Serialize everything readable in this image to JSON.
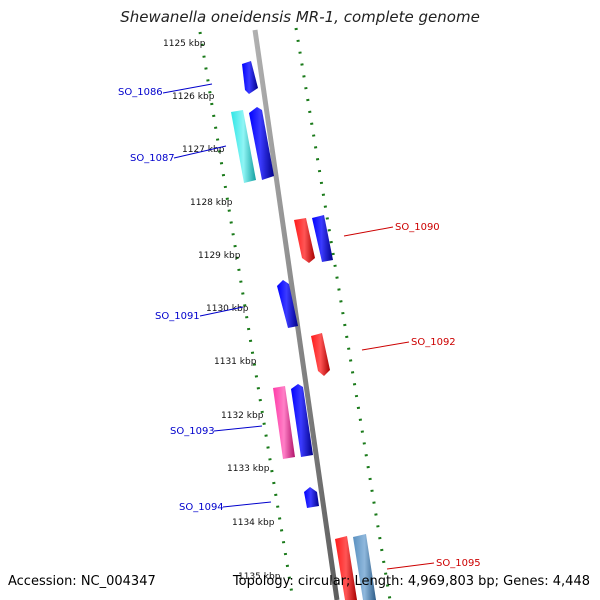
{
  "title": "Shewanella oneidensis MR-1, complete genome",
  "accession": "Accession: NC_004347",
  "topology": "Topology: circular; Length: 4,969,803 bp; Genes: 4,448",
  "ticks": [
    "1125 kbp",
    "1126 kbp",
    "1127 kbp",
    "1128 kbp",
    "1129 kbp",
    "1130 kbp",
    "1131 kbp",
    "1132 kbp",
    "1133 kbp",
    "1134 kbp",
    "1135 kbp"
  ],
  "genes_left": [
    {
      "id": "SO_1086",
      "color": "#0000cc"
    },
    {
      "id": "SO_1087",
      "color": "#0000cc"
    },
    {
      "id": "SO_1091",
      "color": "#0000cc"
    },
    {
      "id": "SO_1093",
      "color": "#0000cc"
    },
    {
      "id": "SO_1094",
      "color": "#0000cc"
    }
  ],
  "genes_right": [
    {
      "id": "SO_1090",
      "color": "#cc0000"
    },
    {
      "id": "SO_1092",
      "color": "#cc0000"
    },
    {
      "id": "SO_1095",
      "color": "#cc0000"
    }
  ],
  "colors": {
    "backbone": "#8a8a8a",
    "tick_dots": "#1a7a1a",
    "forward_blue": "#0000ee",
    "cyan": "#22d8d8",
    "red": "#ee0000",
    "magenta": "#ee2299",
    "steel": "#4a7fb0"
  }
}
